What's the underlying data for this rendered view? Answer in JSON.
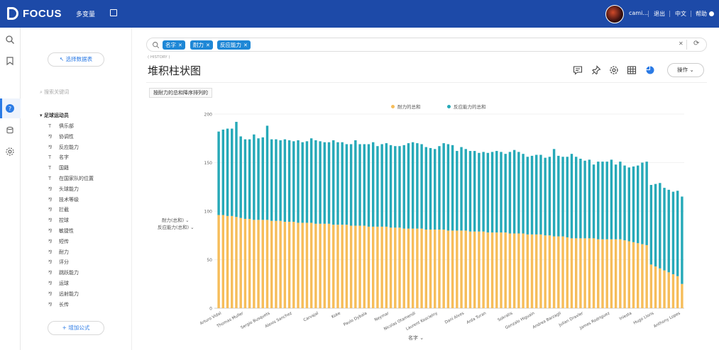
{
  "app": {
    "logo_text": "FOCUS",
    "nav_label": "多变量",
    "username": "cami...",
    "logout": "退出",
    "language": "中文",
    "help": "帮助"
  },
  "sidebar": {
    "select_table_label": "选择数据表",
    "search_placeholder": "搜索关键词",
    "table_name": "足球运动员",
    "fields": [
      {
        "type": "text",
        "label": "俱乐部"
      },
      {
        "type": "measure",
        "label": "协调性"
      },
      {
        "type": "measure",
        "label": "反应能力"
      },
      {
        "type": "text",
        "label": "名字"
      },
      {
        "type": "text",
        "label": "国籍"
      },
      {
        "type": "text",
        "label": "在国家队的位置"
      },
      {
        "type": "measure",
        "label": "头球能力"
      },
      {
        "type": "measure",
        "label": "技术等级"
      },
      {
        "type": "measure",
        "label": "拦截"
      },
      {
        "type": "measure",
        "label": "控球"
      },
      {
        "type": "measure",
        "label": "敏捷性"
      },
      {
        "type": "measure",
        "label": "短传"
      },
      {
        "type": "measure",
        "label": "耐力"
      },
      {
        "type": "measure",
        "label": "评分"
      },
      {
        "type": "measure",
        "label": "跳跃能力"
      },
      {
        "type": "measure",
        "label": "运球"
      },
      {
        "type": "measure",
        "label": "远射能力"
      },
      {
        "type": "measure",
        "label": "长传"
      }
    ],
    "add_formula_label": "增加公式"
  },
  "filter": {
    "tags": [
      "名字",
      "耐力",
      "反应能力"
    ]
  },
  "chart_panel": {
    "subtitle": "( HISTORY )",
    "title": "堆积柱状图",
    "operation_label": "操作",
    "sort_chip": "按耐力的总和降序排列的",
    "y_fields": [
      "耐力(总和)",
      "反应能力(总和)"
    ],
    "x_field": "名字"
  },
  "colors": {
    "topbar": "#1d4aa8",
    "accent": "#2c7be5",
    "tag": "#1e87d6",
    "series1": "#f6bd5a",
    "series2": "#26a9b8"
  },
  "chart_data": {
    "type": "bar",
    "stacked": true,
    "title": "",
    "xlabel": "名字",
    "ylabel": "",
    "ylim": [
      0,
      200
    ],
    "yticks": [
      0,
      50,
      100,
      150,
      200
    ],
    "legend_position": "top-center",
    "x_tick_labels": [
      "Arturo Vidal",
      "Thomas Muller",
      "Sergio Busquets",
      "Alexis Sanchez",
      "Carvajal",
      "Koke",
      "Paulo Dybala",
      "Neymar",
      "Nicolas Otamendi",
      "Laurent Koscielny",
      "Dani Alves",
      "Arda Turan",
      "Sokratis",
      "Gonzalo Higuain",
      "Andrea Barzagli",
      "Julian Draxler",
      "James Rodriguez",
      "Iniesta",
      "Hugo Lloris",
      "Anthony Lopes"
    ],
    "series": [
      {
        "name": "耐力的总和",
        "values": [
          96,
          96,
          95,
          95,
          94,
          93,
          92,
          92,
          91,
          91,
          91,
          91,
          90,
          90,
          90,
          89,
          89,
          89,
          88,
          88,
          88,
          88,
          87,
          87,
          87,
          87,
          86,
          86,
          86,
          86,
          85,
          85,
          85,
          85,
          84,
          84,
          84,
          84,
          84,
          83,
          83,
          83,
          82,
          82,
          82,
          82,
          82,
          81,
          81,
          81,
          81,
          81,
          80,
          80,
          80,
          80,
          80,
          79,
          79,
          79,
          79,
          78,
          78,
          78,
          78,
          78,
          77,
          77,
          77,
          77,
          76,
          76,
          76,
          76,
          75,
          75,
          74,
          74,
          74,
          73,
          72,
          72,
          72,
          72,
          72,
          72,
          71,
          71,
          71,
          71,
          71,
          71,
          70,
          69,
          68,
          67,
          66,
          65,
          45,
          43,
          41,
          39,
          37,
          35,
          33,
          25
        ]
      },
      {
        "name": "反应能力的总和",
        "values": [
          86,
          88,
          90,
          90,
          98,
          84,
          82,
          82,
          88,
          84,
          85,
          97,
          84,
          84,
          83,
          85,
          84,
          83,
          85,
          83,
          84,
          87,
          86,
          85,
          84,
          84,
          87,
          85,
          85,
          83,
          84,
          88,
          84,
          84,
          85,
          87,
          83,
          85,
          86,
          85,
          84,
          84,
          86,
          88,
          89,
          88,
          87,
          85,
          84,
          83,
          86,
          89,
          89,
          88,
          82,
          86,
          84,
          83,
          83,
          81,
          82,
          82,
          83,
          84,
          83,
          81,
          84,
          86,
          84,
          82,
          80,
          81,
          82,
          82,
          80,
          81,
          90,
          83,
          82,
          83,
          87,
          84,
          82,
          80,
          81,
          76,
          80,
          80,
          80,
          82,
          77,
          80,
          77,
          76,
          78,
          80,
          84,
          86,
          82,
          85,
          88,
          85,
          85,
          85,
          88,
          90
        ]
      }
    ]
  }
}
